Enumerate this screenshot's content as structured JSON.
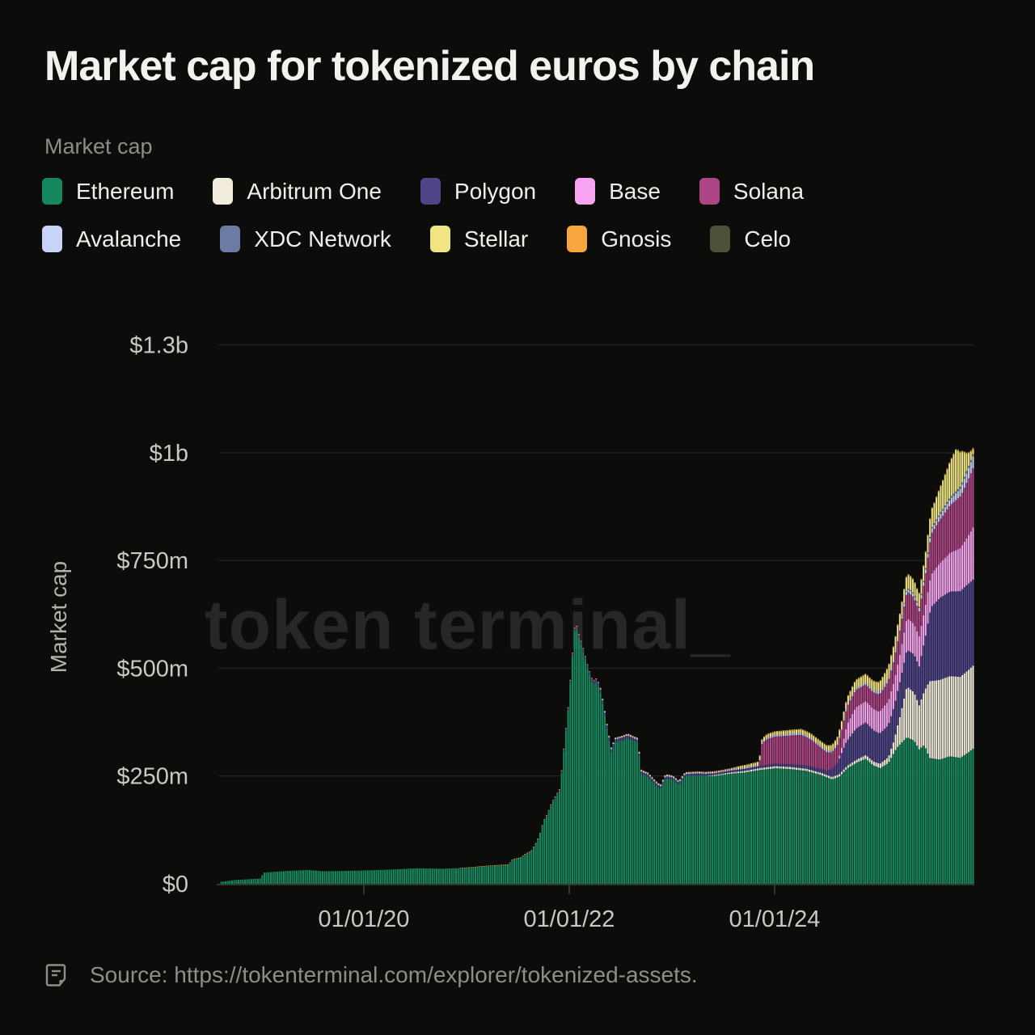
{
  "header": {
    "title": "Market cap for tokenized euros by chain"
  },
  "legend": {
    "title": "Market cap"
  },
  "source": {
    "icon": "document-icon",
    "text": "Source: https://tokenterminal.com/explorer/tokenized-assets."
  },
  "chart_data": {
    "type": "area",
    "title": "Market cap for tokenized euros by chain",
    "xlabel": "",
    "ylabel": "Market cap",
    "unit": "$m",
    "watermark": "token terminal_",
    "grid": "horizontal",
    "legend_position": "top",
    "x_range_decimal_years": [
      2018.59,
      2025.95
    ],
    "x_ticks": [
      {
        "label": "01/01/20",
        "year": 2020
      },
      {
        "label": "01/01/22",
        "year": 2022
      },
      {
        "label": "01/01/24",
        "year": 2024
      }
    ],
    "y_ticks": [
      {
        "label": "$0",
        "value": 0
      },
      {
        "label": "$250m",
        "value": 250
      },
      {
        "label": "$500m",
        "value": 500
      },
      {
        "label": "$750m",
        "value": 750
      },
      {
        "label": "$1b",
        "value": 1000
      },
      {
        "label": "$1.3b",
        "value": 1250
      }
    ],
    "series": [
      {
        "name": "Ethereum",
        "color": "#16875e",
        "points": [
          [
            2018.58,
            4
          ],
          [
            2018.75,
            9
          ],
          [
            2018.98,
            12
          ],
          [
            2019.02,
            26
          ],
          [
            2019.25,
            30
          ],
          [
            2019.45,
            32
          ],
          [
            2019.6,
            29
          ],
          [
            2019.8,
            30
          ],
          [
            2020.0,
            31
          ],
          [
            2020.25,
            33
          ],
          [
            2020.5,
            36
          ],
          [
            2020.75,
            35
          ],
          [
            2021.0,
            37
          ],
          [
            2021.2,
            41
          ],
          [
            2021.4,
            44
          ],
          [
            2021.44,
            56
          ],
          [
            2021.52,
            60
          ],
          [
            2021.56,
            68
          ],
          [
            2021.62,
            75
          ],
          [
            2021.66,
            90
          ],
          [
            2021.7,
            110
          ],
          [
            2021.74,
            143
          ],
          [
            2021.78,
            160
          ],
          [
            2021.82,
            185
          ],
          [
            2021.86,
            200
          ],
          [
            2021.9,
            215
          ],
          [
            2021.94,
            310
          ],
          [
            2021.98,
            400
          ],
          [
            2022.02,
            520
          ],
          [
            2022.05,
            604
          ],
          [
            2022.08,
            575
          ],
          [
            2022.12,
            545
          ],
          [
            2022.17,
            500
          ],
          [
            2022.22,
            462
          ],
          [
            2022.26,
            468
          ],
          [
            2022.3,
            440
          ],
          [
            2022.33,
            400
          ],
          [
            2022.36,
            358
          ],
          [
            2022.4,
            305
          ],
          [
            2022.44,
            328
          ],
          [
            2022.5,
            332
          ],
          [
            2022.56,
            338
          ],
          [
            2022.62,
            332
          ],
          [
            2022.66,
            328
          ],
          [
            2022.69,
            255
          ],
          [
            2022.76,
            248
          ],
          [
            2022.83,
            230
          ],
          [
            2022.88,
            220
          ],
          [
            2022.93,
            245
          ],
          [
            2023.0,
            242
          ],
          [
            2023.06,
            230
          ],
          [
            2023.12,
            250
          ],
          [
            2023.25,
            252
          ],
          [
            2023.4,
            250
          ],
          [
            2023.55,
            255
          ],
          [
            2023.7,
            258
          ],
          [
            2023.85,
            264
          ],
          [
            2024.0,
            268
          ],
          [
            2024.15,
            266
          ],
          [
            2024.3,
            262
          ],
          [
            2024.45,
            252
          ],
          [
            2024.55,
            242
          ],
          [
            2024.62,
            248
          ],
          [
            2024.7,
            268
          ],
          [
            2024.8,
            282
          ],
          [
            2024.88,
            290
          ],
          [
            2024.95,
            275
          ],
          [
            2025.02,
            268
          ],
          [
            2025.1,
            280
          ],
          [
            2025.18,
            315
          ],
          [
            2025.28,
            340
          ],
          [
            2025.35,
            332
          ],
          [
            2025.4,
            312
          ],
          [
            2025.45,
            322
          ],
          [
            2025.5,
            292
          ],
          [
            2025.6,
            288
          ],
          [
            2025.7,
            296
          ],
          [
            2025.8,
            292
          ],
          [
            2025.88,
            305
          ],
          [
            2025.95,
            318
          ]
        ]
      },
      {
        "name": "Arbitrum One",
        "color": "#f1ecdb",
        "points": [
          [
            2023.3,
            0
          ],
          [
            2023.4,
            2
          ],
          [
            2023.7,
            4
          ],
          [
            2024.0,
            5
          ],
          [
            2024.4,
            5
          ],
          [
            2024.7,
            6
          ],
          [
            2024.9,
            9
          ],
          [
            2025.0,
            10
          ],
          [
            2025.1,
            14
          ],
          [
            2025.16,
            30
          ],
          [
            2025.22,
            70
          ],
          [
            2025.28,
            118
          ],
          [
            2025.35,
            112
          ],
          [
            2025.4,
            102
          ],
          [
            2025.45,
            125
          ],
          [
            2025.5,
            178
          ],
          [
            2025.6,
            185
          ],
          [
            2025.7,
            186
          ],
          [
            2025.8,
            188
          ],
          [
            2025.95,
            194
          ]
        ]
      },
      {
        "name": "Polygon",
        "color": "#4f4589",
        "points": [
          [
            2021.7,
            0
          ],
          [
            2021.8,
            2
          ],
          [
            2021.95,
            5
          ],
          [
            2022.05,
            7
          ],
          [
            2022.3,
            8
          ],
          [
            2022.6,
            6
          ],
          [
            2022.9,
            5
          ],
          [
            2023.3,
            4
          ],
          [
            2023.8,
            5
          ],
          [
            2024.1,
            6
          ],
          [
            2024.35,
            8
          ],
          [
            2024.5,
            10
          ],
          [
            2024.6,
            28
          ],
          [
            2024.68,
            55
          ],
          [
            2024.78,
            72
          ],
          [
            2024.88,
            76
          ],
          [
            2025.0,
            70
          ],
          [
            2025.1,
            74
          ],
          [
            2025.2,
            80
          ],
          [
            2025.3,
            86
          ],
          [
            2025.4,
            90
          ],
          [
            2025.46,
            120
          ],
          [
            2025.52,
            172
          ],
          [
            2025.6,
            190
          ],
          [
            2025.7,
            196
          ],
          [
            2025.85,
            200
          ],
          [
            2025.95,
            199
          ]
        ]
      },
      {
        "name": "Base",
        "color": "#f8a5f1",
        "points": [
          [
            2024.6,
            0
          ],
          [
            2024.65,
            14
          ],
          [
            2024.7,
            38
          ],
          [
            2024.78,
            50
          ],
          [
            2024.88,
            49
          ],
          [
            2025.0,
            50
          ],
          [
            2025.1,
            56
          ],
          [
            2025.2,
            62
          ],
          [
            2025.28,
            74
          ],
          [
            2025.36,
            70
          ],
          [
            2025.44,
            70
          ],
          [
            2025.52,
            76
          ],
          [
            2025.62,
            82
          ],
          [
            2025.72,
            92
          ],
          [
            2025.82,
            102
          ],
          [
            2025.9,
            116
          ],
          [
            2025.95,
            126
          ]
        ]
      },
      {
        "name": "Solana",
        "color": "#ac4584",
        "points": [
          [
            2023.84,
            0
          ],
          [
            2023.87,
            52
          ],
          [
            2023.92,
            60
          ],
          [
            2024.0,
            63
          ],
          [
            2024.12,
            66
          ],
          [
            2024.25,
            70
          ],
          [
            2024.35,
            62
          ],
          [
            2024.45,
            48
          ],
          [
            2024.55,
            38
          ],
          [
            2024.65,
            42
          ],
          [
            2024.75,
            41
          ],
          [
            2024.85,
            39
          ],
          [
            2024.95,
            38
          ],
          [
            2025.05,
            42
          ],
          [
            2025.15,
            50
          ],
          [
            2025.25,
            60
          ],
          [
            2025.32,
            62
          ],
          [
            2025.4,
            58
          ],
          [
            2025.47,
            75
          ],
          [
            2025.52,
            94
          ],
          [
            2025.62,
            102
          ],
          [
            2025.72,
            112
          ],
          [
            2025.82,
            122
          ],
          [
            2025.9,
            134
          ],
          [
            2025.95,
            141
          ]
        ]
      },
      {
        "name": "Avalanche",
        "color": "#c7d3f7",
        "points": [
          [
            2022.25,
            0
          ],
          [
            2022.3,
            2
          ],
          [
            2022.6,
            3
          ],
          [
            2023.0,
            3
          ],
          [
            2023.5,
            3
          ],
          [
            2024.0,
            4
          ],
          [
            2024.5,
            4
          ],
          [
            2024.8,
            5
          ],
          [
            2025.0,
            6
          ],
          [
            2025.2,
            7
          ],
          [
            2025.4,
            8
          ],
          [
            2025.55,
            10
          ],
          [
            2025.7,
            14
          ],
          [
            2025.8,
            18
          ],
          [
            2025.88,
            24
          ],
          [
            2025.95,
            30
          ]
        ]
      },
      {
        "name": "XDC Network",
        "color": "#6a7ca4",
        "points": [
          [
            2025.2,
            0
          ],
          [
            2025.3,
            2
          ],
          [
            2025.5,
            3
          ],
          [
            2025.7,
            4
          ],
          [
            2025.95,
            5
          ]
        ]
      },
      {
        "name": "Stellar",
        "color": "#efe583",
        "points": [
          [
            2023.55,
            0
          ],
          [
            2023.65,
            3
          ],
          [
            2023.9,
            6
          ],
          [
            2024.1,
            7
          ],
          [
            2024.3,
            8
          ],
          [
            2024.5,
            10
          ],
          [
            2024.65,
            14
          ],
          [
            2024.78,
            17
          ],
          [
            2024.9,
            18
          ],
          [
            2025.0,
            20
          ],
          [
            2025.1,
            26
          ],
          [
            2025.2,
            30
          ],
          [
            2025.3,
            31
          ],
          [
            2025.38,
            28
          ],
          [
            2025.46,
            36
          ],
          [
            2025.54,
            44
          ],
          [
            2025.62,
            62
          ],
          [
            2025.7,
            82
          ],
          [
            2025.76,
            96
          ],
          [
            2025.82,
            70
          ],
          [
            2025.87,
            34
          ],
          [
            2025.92,
            12
          ],
          [
            2025.95,
            7
          ]
        ]
      },
      {
        "name": "Gnosis",
        "color": "#f6a63c",
        "points": [
          [
            2020.8,
            0
          ],
          [
            2021.0,
            1
          ],
          [
            2022.0,
            1.5
          ],
          [
            2023.0,
            1.5
          ],
          [
            2024.0,
            2
          ],
          [
            2025.0,
            2
          ],
          [
            2025.95,
            2.5
          ]
        ]
      },
      {
        "name": "Celo",
        "color": "#4d5138",
        "points": [
          [
            2023.9,
            0
          ],
          [
            2024.1,
            0.5
          ],
          [
            2025.0,
            1
          ],
          [
            2025.95,
            1.5
          ]
        ]
      }
    ]
  },
  "colors": {
    "background": "#0c0c0a",
    "title_text": "#f4f2ee",
    "muted_text": "#8f8d88",
    "axis_text": "#cac8c2",
    "gridline": "#222220",
    "axis_line": "#34342f",
    "watermark": "#272725"
  }
}
